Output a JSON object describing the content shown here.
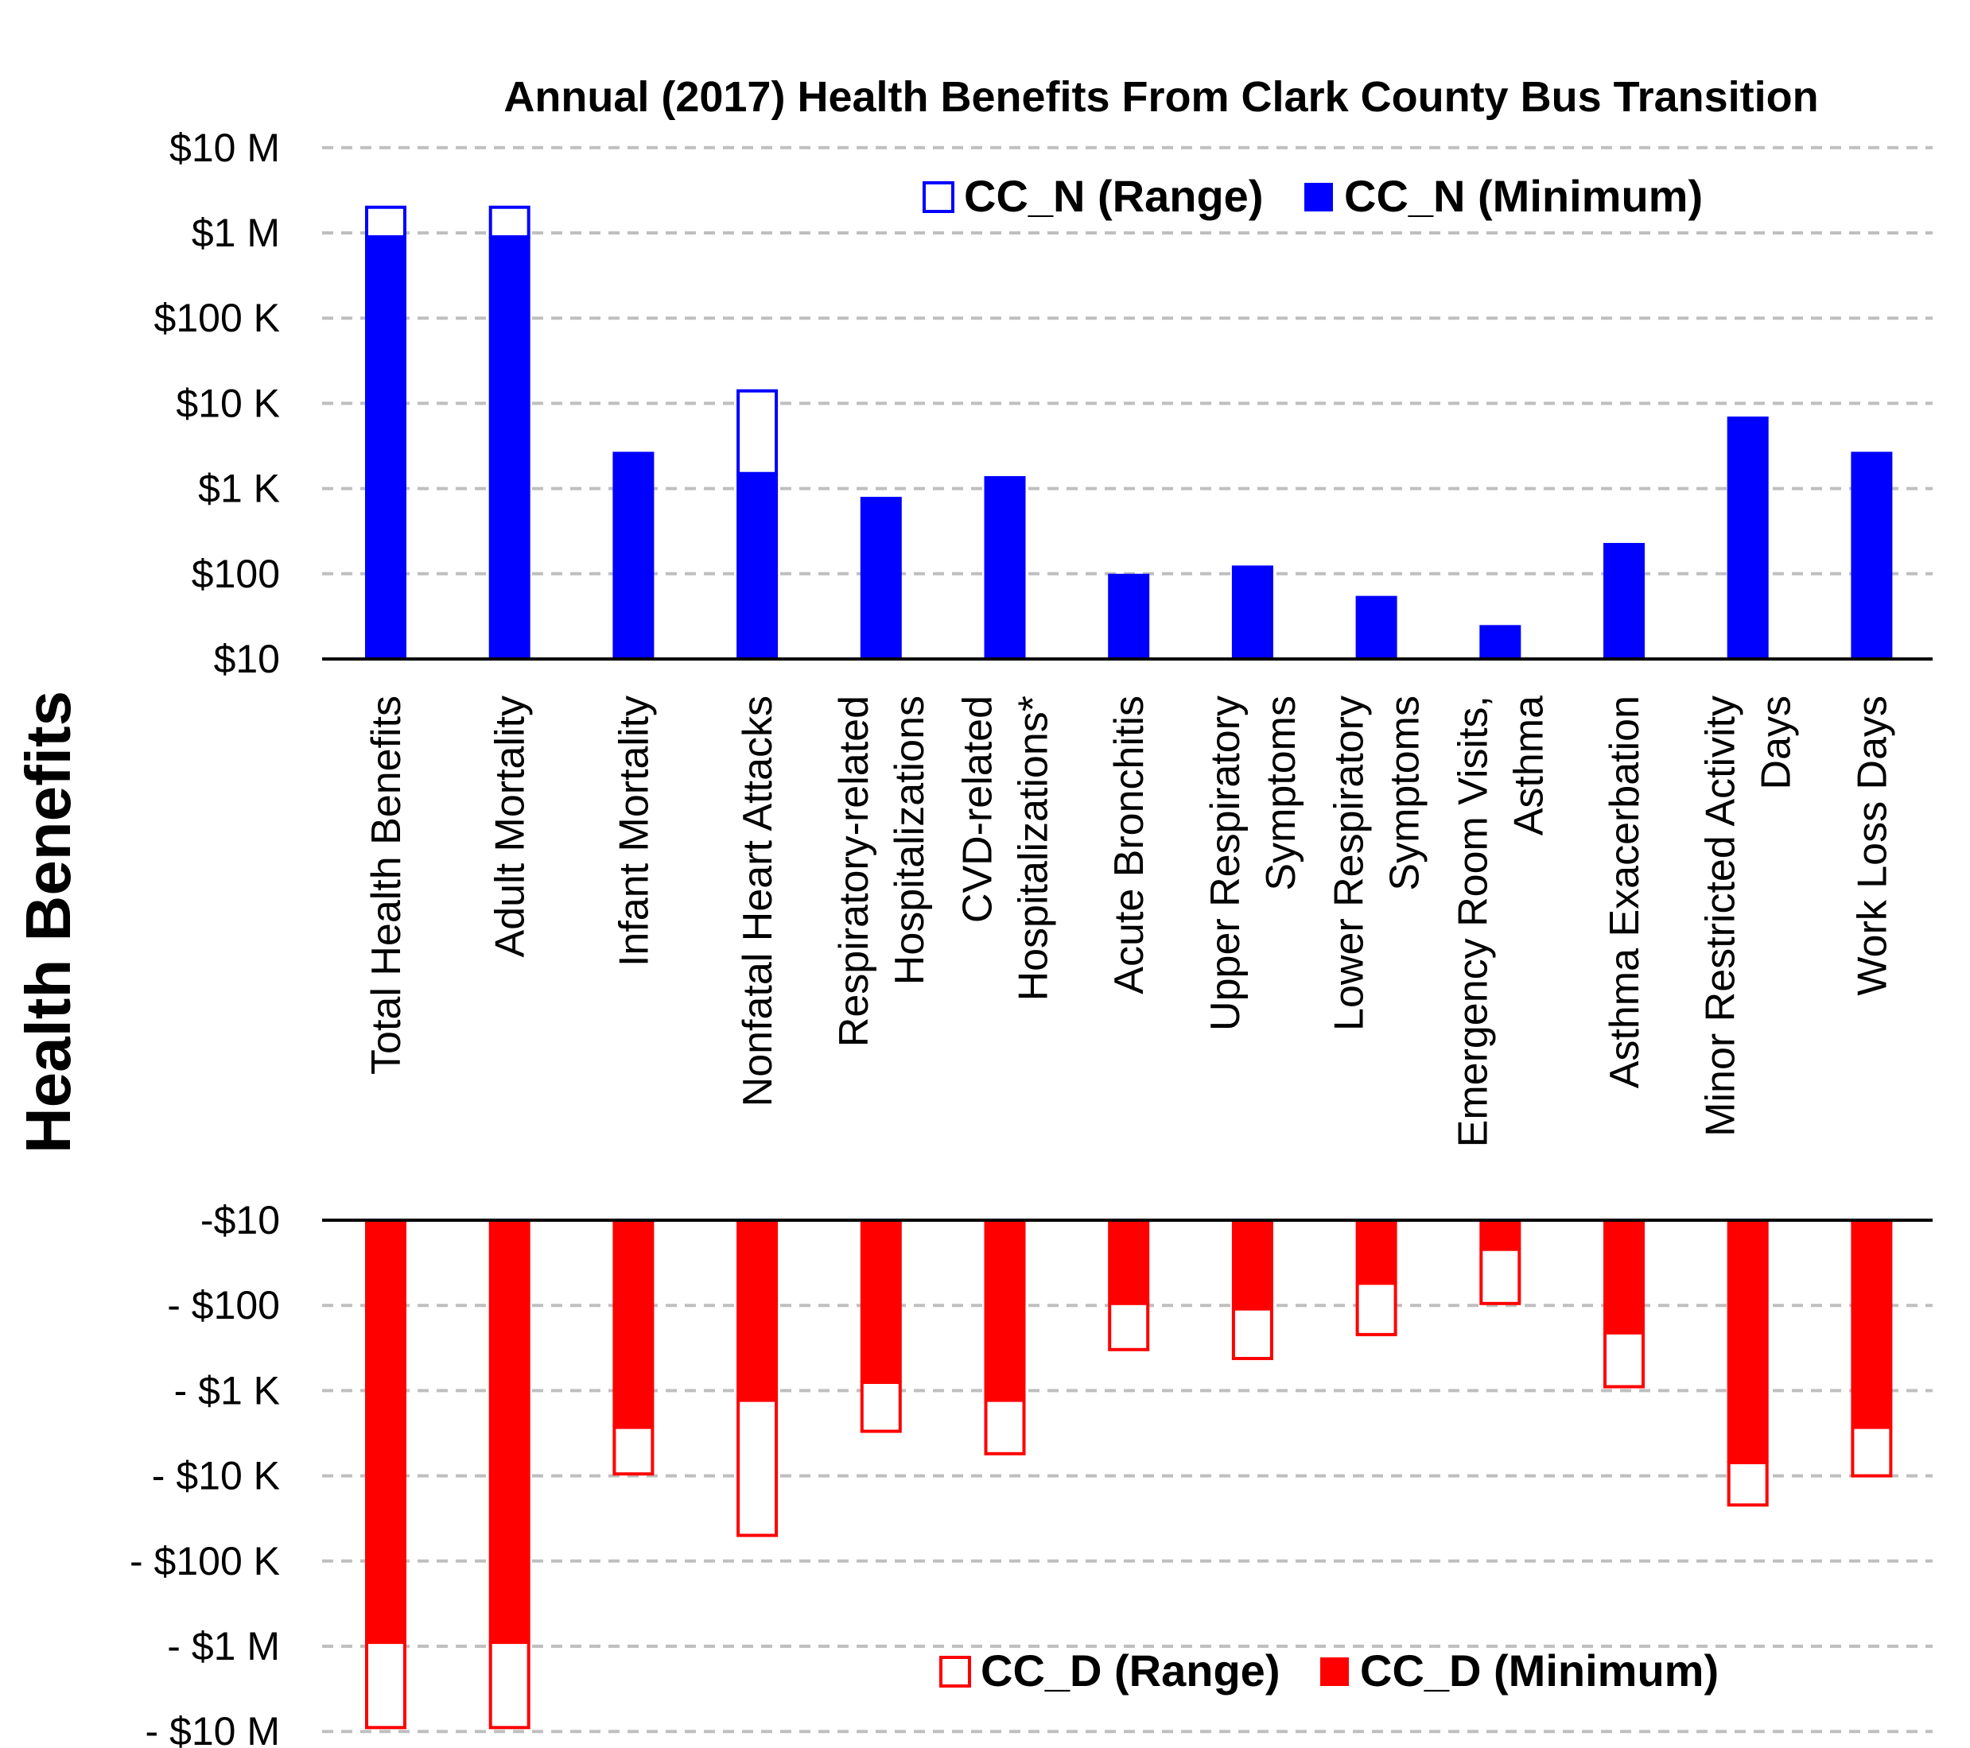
{
  "chart_data": {
    "type": "bar",
    "title": "Annual (2017) Health Benefits From Clark County Bus Transition",
    "ylabel": "Health Benefits",
    "yscale": "log",
    "grid": true,
    "categories": [
      [
        "Total Health Benefits"
      ],
      [
        "Adult Mortality"
      ],
      [
        "Infant Mortality"
      ],
      [
        "Nonfatal Heart Attacks"
      ],
      [
        "Respiratory-related",
        "Hospitalizations"
      ],
      [
        "CVD-related",
        "Hospitalizations*"
      ],
      [
        "Acute Bronchitis"
      ],
      [
        "Upper Respiratory",
        "Symptoms"
      ],
      [
        "Lower Respiratory",
        "Symptoms"
      ],
      [
        "Emergency Room Visits,",
        "Asthma"
      ],
      [
        "Asthma Exacerbation"
      ],
      [
        "Minor Restricted Activity",
        "Days"
      ],
      [
        "Work Loss Days"
      ]
    ],
    "panels": [
      {
        "id": "CC_N",
        "sign": "positive",
        "ylim": [
          10,
          10000000
        ],
        "tick_labels": [
          "$10",
          "$100",
          "$1 K",
          "$10 K",
          "$100 K",
          "$1 M",
          "$10 M"
        ],
        "legend_position": "top-right",
        "color": "#0000FF",
        "series": [
          {
            "name": "CC_N (Range)",
            "style": "outline",
            "values": [
              2000000,
              2000000,
              2700,
              14000,
              800,
              1400,
              100,
              125,
              55,
              25,
              230,
              7000,
              2700
            ]
          },
          {
            "name": "CC_N (Minimum)",
            "style": "filled",
            "values": [
              900000,
              900000,
              2700,
              1500,
              800,
              1400,
              100,
              125,
              55,
              25,
              230,
              7000,
              2700
            ]
          }
        ]
      },
      {
        "id": "CC_D",
        "sign": "negative",
        "ylim": [
          -10,
          -10000000
        ],
        "tick_labels": [
          "-$10",
          "- $100",
          "- $1 K",
          "- $10 K",
          "- $100 K",
          "- $1 M",
          "- $10 M"
        ],
        "legend_position": "bottom-right",
        "color": "#FF0000",
        "series": [
          {
            "name": "CC_D (Range)",
            "style": "outline",
            "values": [
              -9000000,
              -9000000,
              -9500,
              -50000,
              -3000,
              -5500,
              -330,
              -420,
              -220,
              -95,
              -900,
              -22000,
              -10000
            ]
          },
          {
            "name": "CC_D (Minimum)",
            "style": "filled",
            "values": [
              -900000,
              -900000,
              -2700,
              -1300,
              -800,
              -1300,
              -95,
              -110,
              -55,
              -22,
              -210,
              -7000,
              -2700
            ]
          }
        ]
      }
    ]
  }
}
